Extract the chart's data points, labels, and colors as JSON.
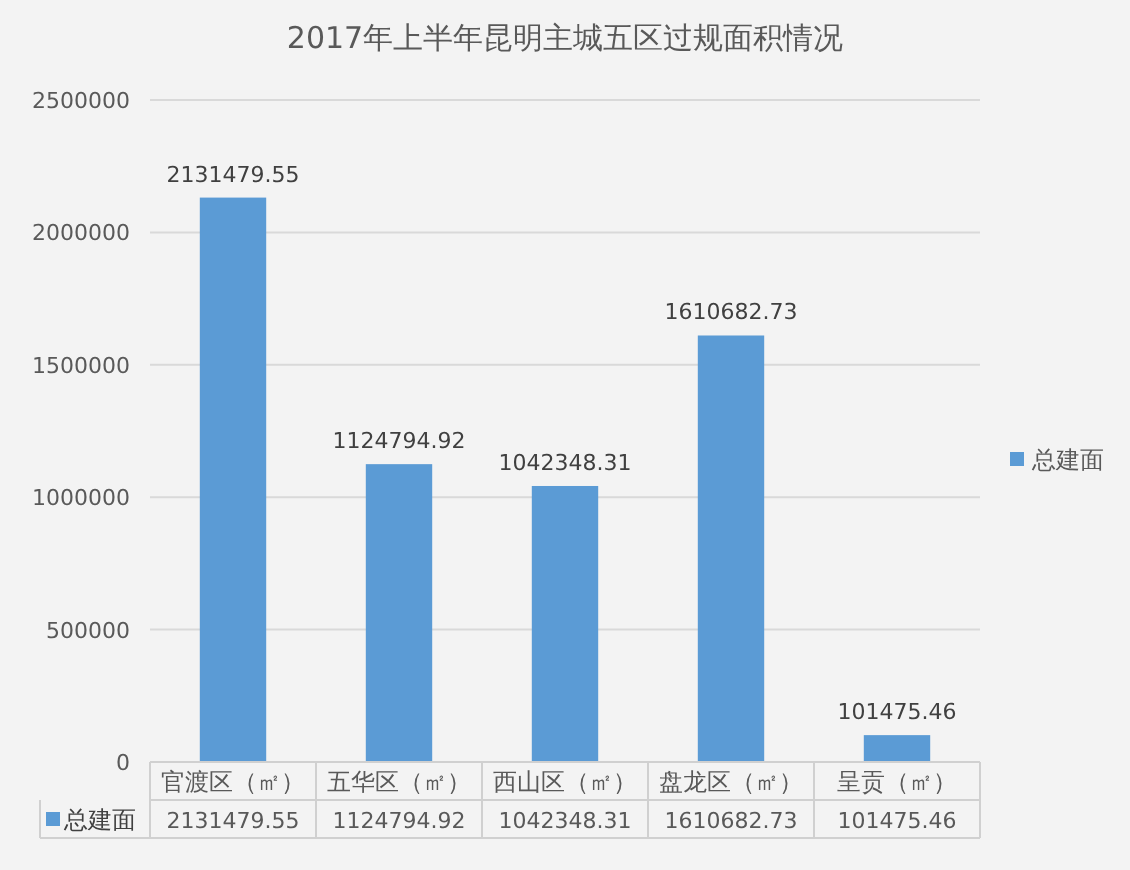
{
  "chart_data": {
    "type": "bar",
    "title": "2017年上半年昆明主城五区过规面积情况",
    "categories": [
      "官渡区（㎡）",
      "五华区（㎡）",
      "西山区（㎡）",
      "盘龙区（㎡）",
      "呈贡（㎡）"
    ],
    "series": [
      {
        "name": "总建面",
        "color": "#5b9bd5",
        "values": [
          2131479.55,
          1124794.92,
          1042348.31,
          1610682.73,
          101475.46
        ],
        "value_labels": [
          "2131479.55",
          "1124794.92",
          "1042348.31",
          "1610682.73",
          "101475.46"
        ]
      }
    ],
    "ylim": [
      0,
      2500000
    ],
    "yticks": [
      0,
      500000,
      1000000,
      1500000,
      2000000,
      2500000
    ],
    "grid": "y",
    "legend": "right",
    "data_labels": true,
    "annotations": [
      "总建面",
      "2131479.55",
      "1124794.92",
      "1042348.31",
      "1610682.73",
      "101475.46"
    ]
  }
}
